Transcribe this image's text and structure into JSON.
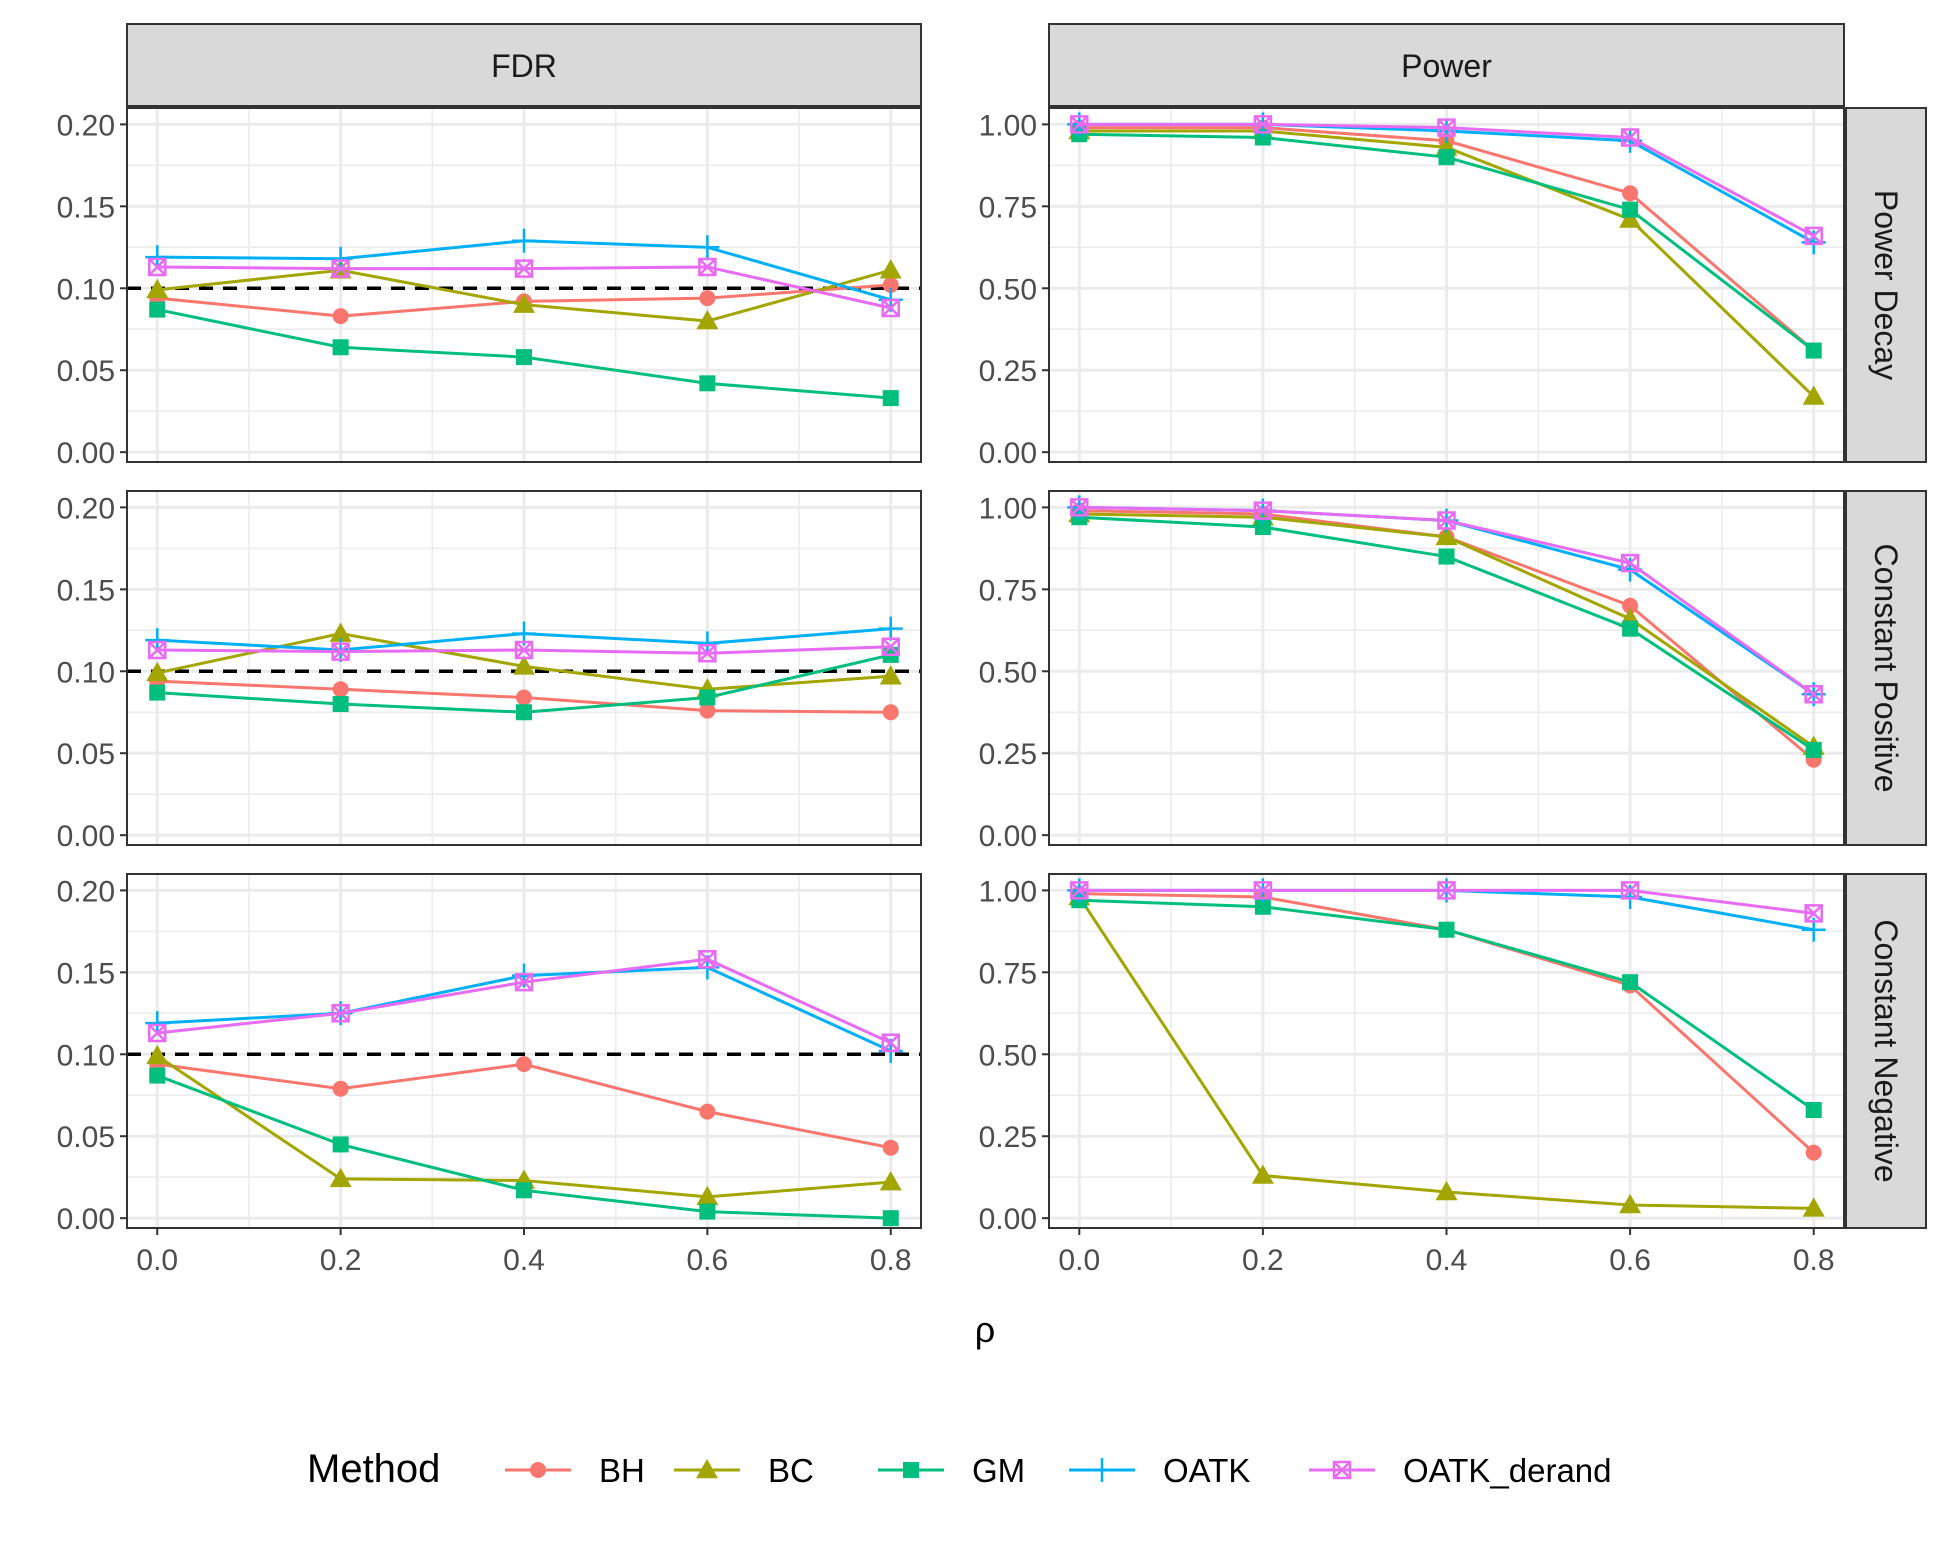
{
  "chart_data": {
    "type": "line",
    "xlabel": "ρ",
    "x": [
      0.0,
      0.2,
      0.4,
      0.6,
      0.8
    ],
    "x_tick_labels": [
      "0.0",
      "0.2",
      "0.4",
      "0.6",
      "0.8"
    ],
    "columns": [
      {
        "key": "FDR",
        "label": "FDR",
        "ylim": [
          -0.006,
          0.21
        ],
        "y_ticks": [
          0.0,
          0.05,
          0.1,
          0.15,
          0.2
        ],
        "y_tick_labels": [
          "0.00",
          "0.05",
          "0.10",
          "0.15",
          "0.20"
        ],
        "reference_line": 0.1
      },
      {
        "key": "Power",
        "label": "Power",
        "ylim": [
          -0.03,
          1.05
        ],
        "y_ticks": [
          0.0,
          0.25,
          0.5,
          0.75,
          1.0
        ],
        "y_tick_labels": [
          "0.00",
          "0.25",
          "0.50",
          "0.75",
          "1.00"
        ],
        "reference_line": null
      }
    ],
    "rows": [
      {
        "key": "power_decay",
        "label": "Power Decay",
        "FDR": {
          "BH": [
            0.094,
            0.083,
            0.092,
            0.094,
            0.102
          ],
          "BC": [
            0.099,
            0.111,
            0.09,
            0.08,
            0.111
          ],
          "GM": [
            0.087,
            0.064,
            0.058,
            0.042,
            0.033
          ],
          "OATK": [
            0.119,
            0.118,
            0.129,
            0.125,
            0.093
          ],
          "OATK_derand": [
            0.113,
            0.112,
            0.112,
            0.113,
            0.088
          ]
        },
        "Power": {
          "BH": [
            0.99,
            0.99,
            0.95,
            0.79,
            0.31
          ],
          "BC": [
            0.98,
            0.98,
            0.93,
            0.71,
            0.17
          ],
          "GM": [
            0.97,
            0.96,
            0.9,
            0.74,
            0.31
          ],
          "OATK": [
            1.0,
            1.0,
            0.98,
            0.95,
            0.64
          ],
          "OATK_derand": [
            1.0,
            1.0,
            0.99,
            0.96,
            0.66
          ]
        }
      },
      {
        "key": "constant_positive",
        "label": "Constant Positive",
        "FDR": {
          "BH": [
            0.094,
            0.089,
            0.084,
            0.076,
            0.075
          ],
          "BC": [
            0.099,
            0.123,
            0.103,
            0.089,
            0.097
          ],
          "GM": [
            0.087,
            0.08,
            0.075,
            0.084,
            0.11
          ],
          "OATK": [
            0.119,
            0.113,
            0.123,
            0.117,
            0.126
          ],
          "OATK_derand": [
            0.113,
            0.112,
            0.113,
            0.111,
            0.115
          ]
        },
        "Power": {
          "BH": [
            0.99,
            0.98,
            0.91,
            0.7,
            0.23
          ],
          "BC": [
            0.98,
            0.97,
            0.91,
            0.66,
            0.27
          ],
          "GM": [
            0.97,
            0.94,
            0.85,
            0.63,
            0.26
          ],
          "OATK": [
            1.0,
            0.99,
            0.96,
            0.81,
            0.43
          ],
          "OATK_derand": [
            1.0,
            0.99,
            0.96,
            0.83,
            0.43
          ]
        }
      },
      {
        "key": "constant_negative",
        "label": "Constant Negative",
        "FDR": {
          "BH": [
            0.094,
            0.079,
            0.094,
            0.065,
            0.043
          ],
          "BC": [
            0.099,
            0.024,
            0.023,
            0.013,
            0.022
          ],
          "GM": [
            0.087,
            0.045,
            0.017,
            0.004,
            0.0
          ],
          "OATK": [
            0.119,
            0.125,
            0.148,
            0.153,
            0.102
          ],
          "OATK_derand": [
            0.113,
            0.125,
            0.144,
            0.158,
            0.107
          ]
        },
        "Power": {
          "BH": [
            0.99,
            0.98,
            0.88,
            0.71,
            0.2
          ],
          "BC": [
            0.98,
            0.13,
            0.08,
            0.04,
            0.03
          ],
          "GM": [
            0.97,
            0.95,
            0.88,
            0.72,
            0.33
          ],
          "OATK": [
            1.0,
            1.0,
            1.0,
            0.98,
            0.88
          ],
          "OATK_derand": [
            1.0,
            1.0,
            1.0,
            1.0,
            0.93
          ]
        }
      }
    ],
    "legend_title": "Method",
    "legend_position": "bottom",
    "series": [
      {
        "name": "BH",
        "color": "#F8766D",
        "marker": "circle"
      },
      {
        "name": "BC",
        "color": "#A3A500",
        "marker": "triangle"
      },
      {
        "name": "GM",
        "color": "#00BF7D",
        "marker": "square"
      },
      {
        "name": "OATK",
        "color": "#00B0F6",
        "marker": "plus"
      },
      {
        "name": "OATK_derand",
        "color": "#E76BF3",
        "marker": "boxed-x"
      }
    ]
  }
}
